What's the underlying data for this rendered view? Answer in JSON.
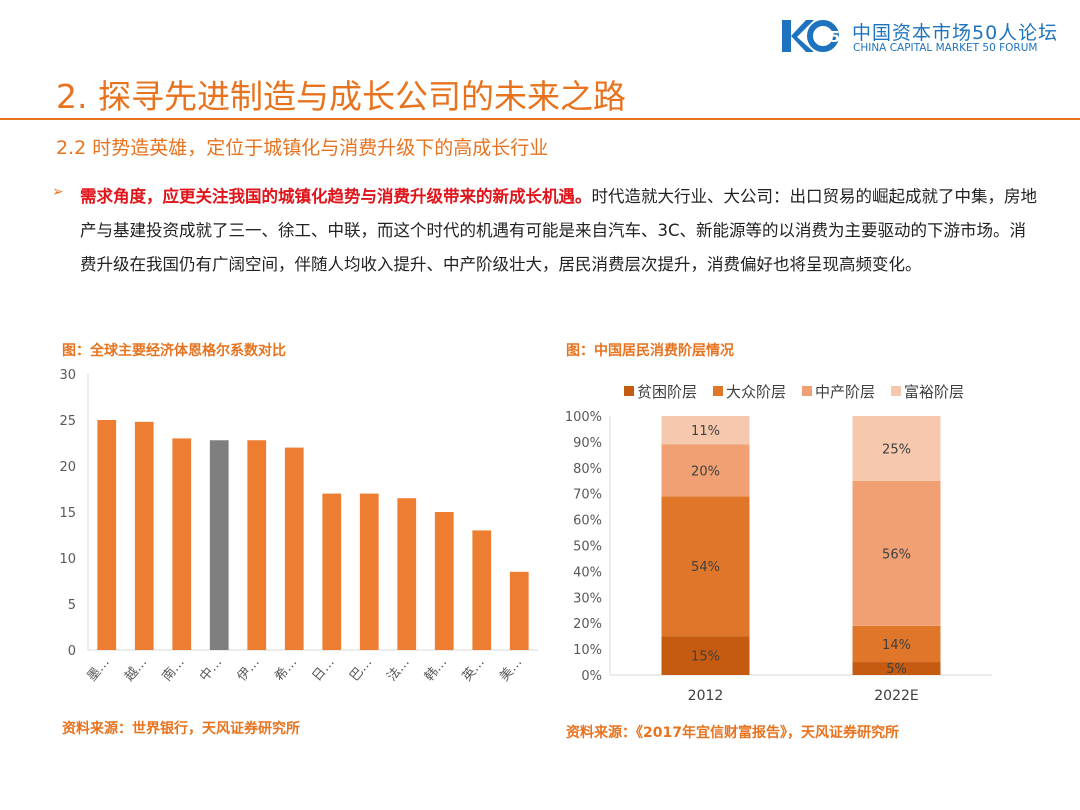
{
  "header": {
    "logo_mark": "K50",
    "logo_cn": "中国资本市场50人论坛",
    "logo_en": "CHINA CAPITAL MARKET 50 FORUM"
  },
  "title": "2. 探寻先进制造与成长公司的未来之路",
  "subtitle": "2.2 时势造英雄，定位于城镇化与消费升级下的高成长行业",
  "bullet": {
    "marker": "➢",
    "emphasis": "需求角度，应更关注我国的城镇化趋势与消费升级带来的新成长机遇。",
    "body": "时代造就大行业、大公司：出口贸易的崛起成就了中集，房地产与基建投资成就了三一、徐工、中联，而这个时代的机遇有可能是来自汽车、3C、新能源等的以消费为主要驱动的下游市场。消费升级在我国仍有广阔空间，伴随人均收入提升、中产阶级壮大，居民消费层次提升，消费偏好也将呈现高频变化。"
  },
  "left_figure": {
    "caption": "图：全球主要经济体恩格尔系数对比",
    "source": "资料来源：世界银行，天风证券研究所"
  },
  "right_figure": {
    "caption": "图：中国居民消费阶层情况",
    "source": "资料来源：《2017年宜信财富报告》，天风证券研究所"
  },
  "chart_data": [
    {
      "type": "bar",
      "categories": [
        "墨…",
        "越…",
        "南…",
        "中…",
        "伊…",
        "希…",
        "日…",
        "巴…",
        "法…",
        "韩…",
        "英…",
        "美…"
      ],
      "values": [
        25,
        24.8,
        23,
        22.8,
        22.8,
        22,
        17,
        17,
        16.5,
        15,
        13,
        8.5
      ],
      "highlight_index": 3,
      "colors": {
        "bar": "#ed7d31",
        "highlight": "#7f7f7f"
      },
      "ylim": [
        0,
        30
      ],
      "yticks": [
        "0",
        "5",
        "10",
        "15",
        "20",
        "25",
        "30"
      ],
      "grid": false
    },
    {
      "type": "bar",
      "stacked": true,
      "categories": [
        "2012",
        "2022E"
      ],
      "series": [
        {
          "name": "贫困阶层",
          "values": [
            15,
            5
          ],
          "labels": [
            "15%",
            "5%"
          ],
          "color": "#c55a11"
        },
        {
          "name": "大众阶层",
          "values": [
            54,
            14
          ],
          "labels": [
            "54%",
            "14%"
          ],
          "color": "#e0762a"
        },
        {
          "name": "中产阶层",
          "values": [
            20,
            56
          ],
          "labels": [
            "20%",
            "56%"
          ],
          "color": "#f0a072"
        },
        {
          "name": "富裕阶层",
          "values": [
            11,
            25
          ],
          "labels": [
            "11%",
            "25%"
          ],
          "color": "#f6c8ae"
        }
      ],
      "ylim": [
        0,
        100
      ],
      "yticks": [
        "0%",
        "10%",
        "20%",
        "30%",
        "40%",
        "50%",
        "60%",
        "70%",
        "80%",
        "90%",
        "100%"
      ],
      "legend": "top",
      "grid": false
    }
  ]
}
